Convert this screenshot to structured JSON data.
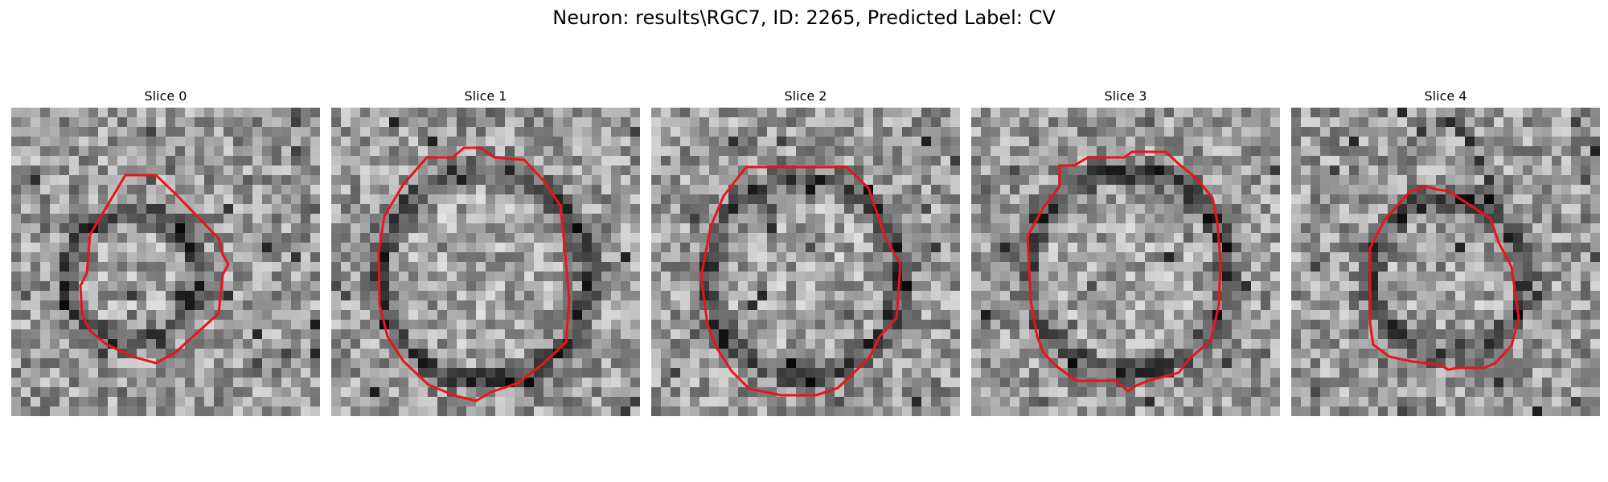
{
  "figure": {
    "title": "Neuron: results\\RGC7, ID: 2265, Predicted Label: CV",
    "colors": {
      "contour": "#e8151a",
      "background": "#ffffff"
    },
    "panels": [
      {
        "title": "Slice 0",
        "image": "grayscale-em-slice-0",
        "overlay": "red-contour"
      },
      {
        "title": "Slice 1",
        "image": "grayscale-em-slice-1",
        "overlay": "red-contour"
      },
      {
        "title": "Slice 2",
        "image": "grayscale-em-slice-2",
        "overlay": "red-contour"
      },
      {
        "title": "Slice 3",
        "image": "grayscale-em-slice-3",
        "overlay": "red-contour"
      },
      {
        "title": "Slice 4",
        "image": "grayscale-em-slice-4",
        "overlay": "red-contour"
      }
    ]
  }
}
